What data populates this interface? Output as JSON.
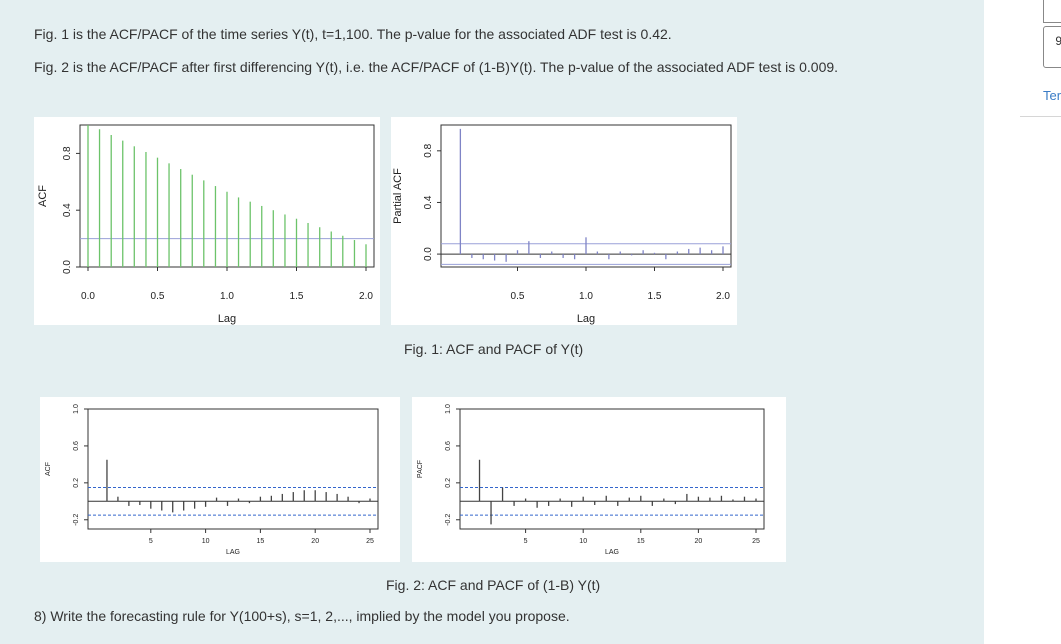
{
  "question": {
    "fig1_text": "Fig. 1 is the ACF/PACF of the time series Y(t), t=1,100. The p-value for the associated ADF test is 0.42.",
    "fig2_text": "Fig. 2 is the ACF/PACF after first differencing Y(t), i.e. the ACF/PACF of (1-B)Y(t). The p-value of the associated ADF test is 0.009.",
    "fig1_caption": "Fig. 1: ACF and PACF of Y(t)",
    "fig2_caption": "Fig. 2: ACF and PACF of (1-B) Y(t)",
    "prompt": "8) Write the forecasting rule for Y(100+s), s=1, 2,..., implied by the model you propose."
  },
  "sidebar": {
    "input_value": "9",
    "link_text": "Ter"
  },
  "chart_data": [
    {
      "type": "bar",
      "ylabel": "ACF",
      "xlabel": "Lag",
      "xticks": [
        "0.0",
        "0.5",
        "1.0",
        "1.5",
        "2.0"
      ],
      "yticks": [
        "0.0",
        "0.4",
        "0.8"
      ],
      "xlim": [
        0,
        2.0
      ],
      "ylim": [
        0,
        1.0
      ],
      "conf_band": 0.2,
      "lags": [
        0.0,
        0.083,
        0.167,
        0.25,
        0.333,
        0.417,
        0.5,
        0.583,
        0.667,
        0.75,
        0.833,
        0.917,
        1.0,
        1.083,
        1.167,
        1.25,
        1.333,
        1.417,
        1.5,
        1.583,
        1.667,
        1.75,
        1.833,
        1.917,
        2.0
      ],
      "values": [
        1.0,
        0.97,
        0.93,
        0.89,
        0.85,
        0.81,
        0.77,
        0.73,
        0.69,
        0.65,
        0.61,
        0.57,
        0.53,
        0.49,
        0.46,
        0.43,
        0.4,
        0.37,
        0.34,
        0.31,
        0.28,
        0.25,
        0.22,
        0.19,
        0.16
      ],
      "color": "#6cc36a"
    },
    {
      "type": "bar",
      "ylabel": "Partial ACF",
      "xlabel": "Lag",
      "xticks": [
        "0.5",
        "1.0",
        "1.5",
        "2.0"
      ],
      "yticks": [
        "0.0",
        "0.4",
        "0.8"
      ],
      "xlim": [
        0,
        2.0
      ],
      "ylim": [
        -0.1,
        1.0
      ],
      "conf_band": 0.08,
      "lags": [
        0.083,
        0.167,
        0.25,
        0.333,
        0.417,
        0.5,
        0.583,
        0.667,
        0.75,
        0.833,
        0.917,
        1.0,
        1.083,
        1.167,
        1.25,
        1.333,
        1.417,
        1.5,
        1.583,
        1.667,
        1.75,
        1.833,
        1.917,
        2.0
      ],
      "values": [
        0.97,
        -0.03,
        -0.04,
        -0.05,
        -0.06,
        0.03,
        0.1,
        -0.03,
        0.02,
        -0.03,
        -0.04,
        0.13,
        0.02,
        -0.04,
        0.02,
        -0.01,
        0.03,
        0.01,
        -0.04,
        0.02,
        0.04,
        0.05,
        0.03,
        0.06
      ],
      "color": "#7f84c6"
    },
    {
      "type": "bar",
      "ylabel": "ACF",
      "xlabel": "LAG",
      "xticks": [
        "5",
        "10",
        "15",
        "20",
        "25"
      ],
      "yticks": [
        "-0.2",
        "0.2",
        "0.6",
        "1.0"
      ],
      "xlim": [
        0,
        25
      ],
      "ylim": [
        -0.3,
        1.0
      ],
      "conf_band": 0.15,
      "lags": [
        1,
        2,
        3,
        4,
        5,
        6,
        7,
        8,
        9,
        10,
        11,
        12,
        13,
        14,
        15,
        16,
        17,
        18,
        19,
        20,
        21,
        22,
        23,
        24,
        25
      ],
      "values": [
        0.45,
        0.05,
        -0.05,
        -0.04,
        -0.08,
        -0.1,
        -0.12,
        -0.1,
        -0.08,
        -0.06,
        0.04,
        -0.05,
        0.03,
        -0.02,
        0.05,
        0.06,
        0.08,
        0.1,
        0.12,
        0.12,
        0.1,
        0.08,
        0.05,
        -0.02,
        0.03
      ],
      "color": "#444444"
    },
    {
      "type": "bar",
      "ylabel": "PACF",
      "xlabel": "LAG",
      "xticks": [
        "5",
        "10",
        "15",
        "20",
        "25"
      ],
      "yticks": [
        "-0.2",
        "0.2",
        "0.6",
        "1.0"
      ],
      "xlim": [
        0,
        25
      ],
      "ylim": [
        -0.3,
        1.0
      ],
      "conf_band": 0.15,
      "lags": [
        1,
        2,
        3,
        4,
        5,
        6,
        7,
        8,
        9,
        10,
        11,
        12,
        13,
        14,
        15,
        16,
        17,
        18,
        19,
        20,
        21,
        22,
        23,
        24,
        25
      ],
      "values": [
        0.45,
        -0.25,
        0.15,
        -0.05,
        0.03,
        -0.07,
        -0.05,
        0.03,
        -0.06,
        0.05,
        -0.04,
        0.06,
        -0.05,
        0.04,
        0.06,
        -0.05,
        0.03,
        -0.03,
        0.08,
        0.05,
        0.04,
        0.06,
        0.02,
        0.05,
        0.03
      ],
      "color": "#444444"
    }
  ]
}
